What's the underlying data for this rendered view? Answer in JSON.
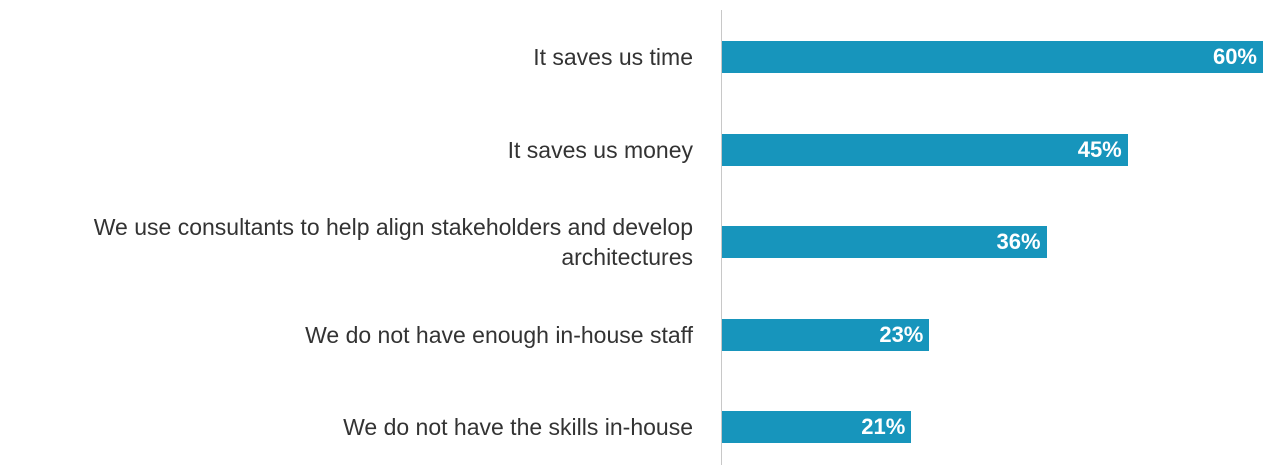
{
  "chart_data": {
    "type": "barh",
    "categories": [
      "It saves us time",
      "It saves us money",
      "We use consultants to help align stakeholders and develop architectures",
      "We do not have enough in-house staff",
      "We do not have the skills in-house"
    ],
    "values": [
      60,
      45,
      36,
      23,
      21
    ],
    "value_labels": [
      "60%",
      "45%",
      "36%",
      "23%",
      "21%"
    ],
    "color": "#1795bc"
  }
}
